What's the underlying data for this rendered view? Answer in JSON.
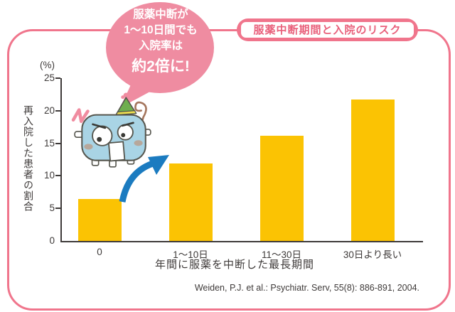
{
  "header": {
    "title_box_label": "服薬中断期間と入院のリスク"
  },
  "speech_bubble": {
    "lines": [
      "服薬中断が",
      "1〜10日間でも",
      "入院率は",
      "約2倍に!"
    ]
  },
  "chart_data": {
    "type": "bar",
    "title": "服薬中断期間と入院のリスク",
    "categories": [
      "0",
      "1〜10日",
      "11〜30日",
      "30日より長い"
    ],
    "values": [
      6.4,
      11.9,
      16.2,
      21.7
    ],
    "xlabel": "年間に服薬を中断した最長期間",
    "ylabel": "再入院した患者の割合",
    "y_unit": "(%)",
    "ylim": [
      0,
      25
    ],
    "yticks": [
      0,
      5,
      10,
      15,
      20,
      25
    ],
    "grid": false,
    "legend": false,
    "bar_color": "#FBC303",
    "annotation": {
      "text": "服薬中断が1〜10日間でも入院率は約2倍に!",
      "arrow_from_category": "0",
      "arrow_to_category": "1〜10日"
    }
  },
  "citation": "Weiden, P.J. et al.: Psychiatr. Serv, 55(8): 886-891, 2004.",
  "colors": {
    "frame_pink": "#F0758C",
    "bubble_pink": "#EF8CA1",
    "title_text_pink": "#E9607B",
    "bar_yellow": "#FBC303",
    "arrow_blue": "#1B7BC0",
    "text_dark": "#3E3A39"
  },
  "icons": {
    "mascot": "surprised-robot-mascot",
    "arrow": "curved-swoosh-arrow",
    "bubble": "speech-bubble"
  }
}
